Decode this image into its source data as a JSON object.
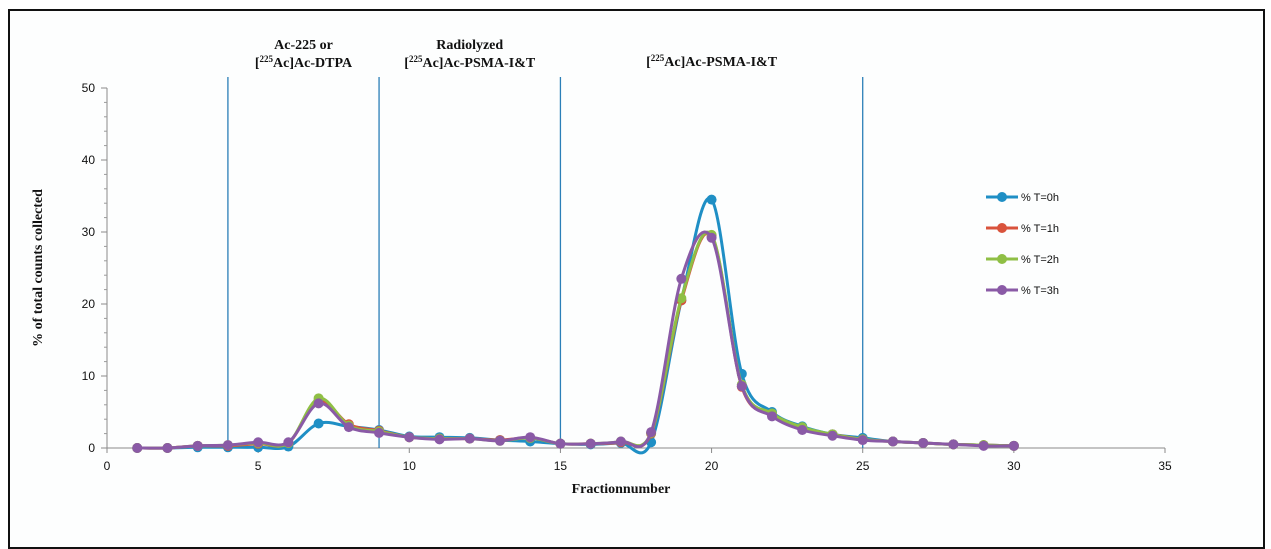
{
  "chart_data": {
    "type": "line",
    "xlabel": "Fractionnumber",
    "ylabel": "% of total counts collected",
    "xlim": [
      0,
      35
    ],
    "ylim": [
      0,
      50
    ],
    "xticks": [
      0,
      5,
      10,
      15,
      20,
      25,
      30,
      35
    ],
    "yticks": [
      0,
      10,
      20,
      30,
      40,
      50
    ],
    "grid": false,
    "legend_position": "right",
    "vlines": [
      4,
      9,
      15,
      25
    ],
    "region_labels": [
      {
        "lines": [
          {
            "pre": "",
            "sup": "",
            "text": "Ac-225 or"
          },
          {
            "pre": "[",
            "sup": "225",
            "text": "Ac]Ac-DTPA"
          }
        ],
        "x": 6.5
      },
      {
        "lines": [
          {
            "pre": "",
            "sup": "",
            "text": "Radiolyzed"
          },
          {
            "pre": "[",
            "sup": "225",
            "text": "Ac]Ac-PSMA-I&T"
          }
        ],
        "x": 12
      },
      {
        "lines": [
          {
            "pre": "[",
            "sup": "225",
            "text": "Ac]Ac-PSMA-I&T"
          }
        ],
        "x": 20
      }
    ],
    "x": [
      1,
      2,
      3,
      4,
      5,
      6,
      7,
      8,
      9,
      10,
      11,
      12,
      13,
      14,
      15,
      16,
      17,
      18,
      19,
      20,
      21,
      22,
      23,
      24,
      25,
      26,
      27,
      28,
      29,
      30
    ],
    "series": [
      {
        "name": "% T=0h",
        "color": "#1f8fc5",
        "values": [
          0,
          0,
          0.1,
          0.1,
          0.1,
          0.2,
          3.4,
          3.0,
          2.5,
          1.6,
          1.5,
          1.4,
          1.1,
          0.9,
          0.6,
          0.5,
          0.7,
          0.8,
          20.5,
          34.5,
          10.3,
          5.0,
          3.0,
          1.9,
          1.4,
          0.9,
          0.7,
          0.5,
          0.4,
          0.3
        ]
      },
      {
        "name": "% T=1h",
        "color": "#d9533c",
        "values": [
          0,
          0,
          0.3,
          0.3,
          0.6,
          0.7,
          6.6,
          3.3,
          2.4,
          1.5,
          1.3,
          1.3,
          1.1,
          1.4,
          0.6,
          0.6,
          0.8,
          2.0,
          20.5,
          29.5,
          8.5,
          4.6,
          2.6,
          1.9,
          1.2,
          0.9,
          0.7,
          0.5,
          0.4,
          0.3
        ]
      },
      {
        "name": "% T=2h",
        "color": "#8fbf45",
        "values": [
          0,
          0,
          0.3,
          0.4,
          0.7,
          0.7,
          6.9,
          3.1,
          2.3,
          1.5,
          1.3,
          1.3,
          1.0,
          1.4,
          0.6,
          0.6,
          0.9,
          2.1,
          20.8,
          29.6,
          8.8,
          4.8,
          2.9,
          1.9,
          1.2,
          0.9,
          0.7,
          0.5,
          0.4,
          0.3
        ]
      },
      {
        "name": "% T=3h",
        "color": "#8a5aa6",
        "values": [
          0,
          0,
          0.3,
          0.4,
          0.8,
          0.8,
          6.2,
          2.9,
          2.1,
          1.5,
          1.2,
          1.3,
          1.0,
          1.5,
          0.6,
          0.6,
          0.9,
          2.2,
          23.5,
          29.2,
          8.6,
          4.4,
          2.5,
          1.7,
          1.1,
          0.9,
          0.7,
          0.5,
          0.3,
          0.3
        ]
      }
    ]
  }
}
